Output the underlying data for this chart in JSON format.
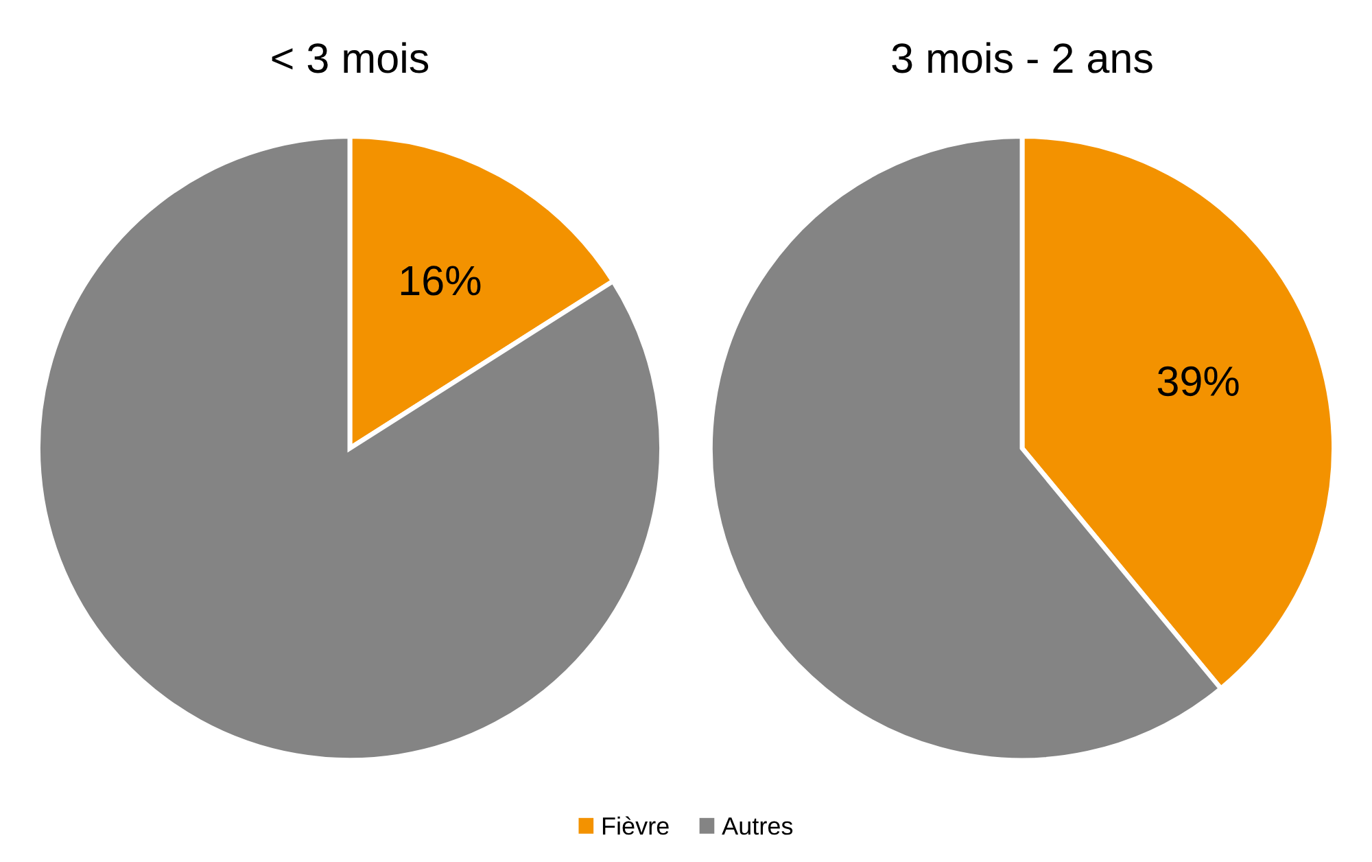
{
  "chart_data": [
    {
      "type": "pie",
      "title": "< 3 mois",
      "categories": [
        "Fièvre",
        "Autres"
      ],
      "values": [
        16,
        84
      ],
      "colors": [
        "#f39200",
        "#848484"
      ],
      "value_labels": [
        "16%",
        null
      ],
      "legend": "bottom"
    },
    {
      "type": "pie",
      "title": "3 mois - 2 ans",
      "categories": [
        null,
        null
      ],
      "values": [
        39,
        61
      ],
      "colors": [
        "#f39200",
        "#848484"
      ],
      "value_labels": [
        "39%",
        null
      ]
    }
  ]
}
